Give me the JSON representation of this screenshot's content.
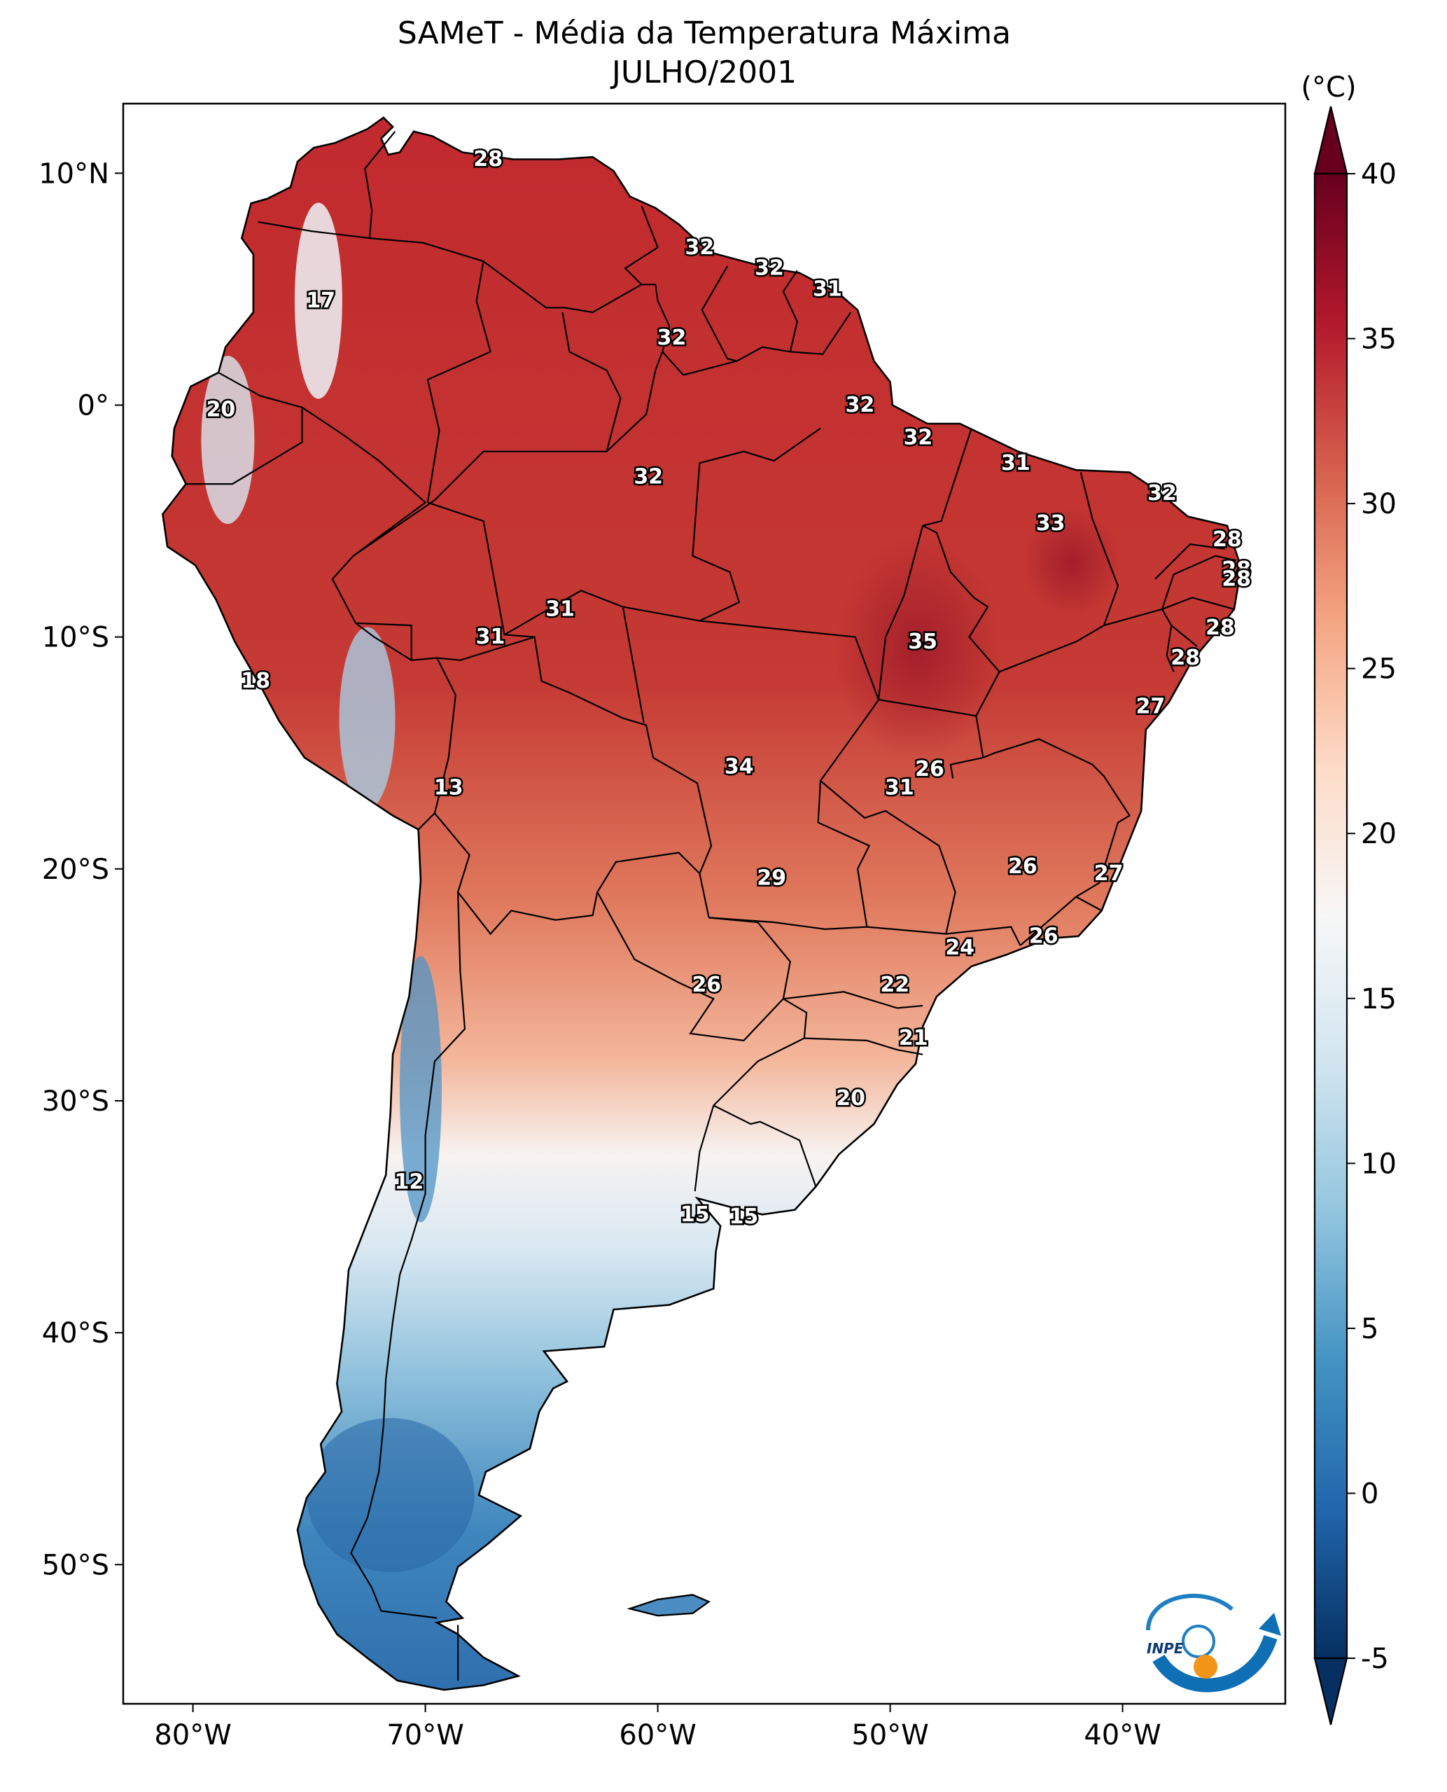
{
  "title": "SAMeT - Média da Temperatura Máxima",
  "subtitle": "JULHO/2001",
  "colorbar": {
    "unit": "(°C)",
    "ticks": [
      "40",
      "35",
      "30",
      "25",
      "20",
      "15",
      "10",
      "5",
      "0",
      "-5"
    ],
    "tick_values": [
      40,
      35,
      30,
      25,
      20,
      15,
      10,
      5,
      0,
      -5
    ],
    "range": [
      -5,
      40
    ],
    "colormap": [
      "#053061",
      "#2166ac",
      "#4393c3",
      "#92c5de",
      "#d1e5f0",
      "#f7f7f7",
      "#fddbc7",
      "#f4a582",
      "#d6604d",
      "#b2182b",
      "#67001f"
    ]
  },
  "axes": {
    "lon_ticks": [
      "80°W",
      "70°W",
      "60°W",
      "50°W",
      "40°W"
    ],
    "lon_values": [
      -80,
      -70,
      -60,
      -50,
      -40
    ],
    "lat_ticks": [
      "10°N",
      "0°",
      "10°S",
      "20°S",
      "30°S",
      "40°S",
      "50°S"
    ],
    "lat_values": [
      10,
      0,
      -10,
      -20,
      -30,
      -40,
      -50
    ],
    "lon_range": [
      -83,
      -33
    ],
    "lat_range": [
      -56,
      13
    ]
  },
  "labels": [
    {
      "text": "28",
      "lon": -67.3,
      "lat": 10.6
    },
    {
      "text": "17",
      "lon": -74.5,
      "lat": 4.5
    },
    {
      "text": "32",
      "lon": -58.2,
      "lat": 6.8
    },
    {
      "text": "32",
      "lon": -55.2,
      "lat": 5.9
    },
    {
      "text": "31",
      "lon": -52.7,
      "lat": 5.0
    },
    {
      "text": "32",
      "lon": -59.4,
      "lat": 2.9
    },
    {
      "text": "20",
      "lon": -78.8,
      "lat": -0.2
    },
    {
      "text": "32",
      "lon": -51.3,
      "lat": 0.0
    },
    {
      "text": "32",
      "lon": -48.8,
      "lat": -1.4
    },
    {
      "text": "31",
      "lon": -44.6,
      "lat": -2.5
    },
    {
      "text": "32",
      "lon": -60.4,
      "lat": -3.1
    },
    {
      "text": "32",
      "lon": -38.3,
      "lat": -3.8
    },
    {
      "text": "33",
      "lon": -43.1,
      "lat": -5.1
    },
    {
      "text": "28",
      "lon": -35.5,
      "lat": -5.8
    },
    {
      "text": "28",
      "lon": -35.1,
      "lat": -7.1
    },
    {
      "text": "28",
      "lon": -35.1,
      "lat": -7.5
    },
    {
      "text": "31",
      "lon": -64.2,
      "lat": -8.8
    },
    {
      "text": "31",
      "lon": -67.2,
      "lat": -10.0
    },
    {
      "text": "28",
      "lon": -35.8,
      "lat": -9.6
    },
    {
      "text": "35",
      "lon": -48.6,
      "lat": -10.2
    },
    {
      "text": "28",
      "lon": -37.3,
      "lat": -10.9
    },
    {
      "text": "18",
      "lon": -77.3,
      "lat": -11.9
    },
    {
      "text": "27",
      "lon": -38.8,
      "lat": -13.0
    },
    {
      "text": "13",
      "lon": -69.0,
      "lat": -16.5
    },
    {
      "text": "34",
      "lon": -56.5,
      "lat": -15.6
    },
    {
      "text": "26",
      "lon": -48.3,
      "lat": -15.7
    },
    {
      "text": "31",
      "lon": -49.6,
      "lat": -16.5
    },
    {
      "text": "26",
      "lon": -44.3,
      "lat": -19.9
    },
    {
      "text": "27",
      "lon": -40.6,
      "lat": -20.2
    },
    {
      "text": "29",
      "lon": -55.1,
      "lat": -20.4
    },
    {
      "text": "26",
      "lon": -43.4,
      "lat": -22.9
    },
    {
      "text": "24",
      "lon": -47.0,
      "lat": -23.4
    },
    {
      "text": "26",
      "lon": -57.9,
      "lat": -25.0
    },
    {
      "text": "22",
      "lon": -49.8,
      "lat": -25.0
    },
    {
      "text": "21",
      "lon": -49.0,
      "lat": -27.3
    },
    {
      "text": "20",
      "lon": -51.7,
      "lat": -29.9
    },
    {
      "text": "12",
      "lon": -70.7,
      "lat": -33.5
    },
    {
      "text": "15",
      "lon": -58.4,
      "lat": -34.9
    },
    {
      "text": "15",
      "lon": -56.3,
      "lat": -35.0
    }
  ],
  "logo": {
    "text": "INPE"
  }
}
